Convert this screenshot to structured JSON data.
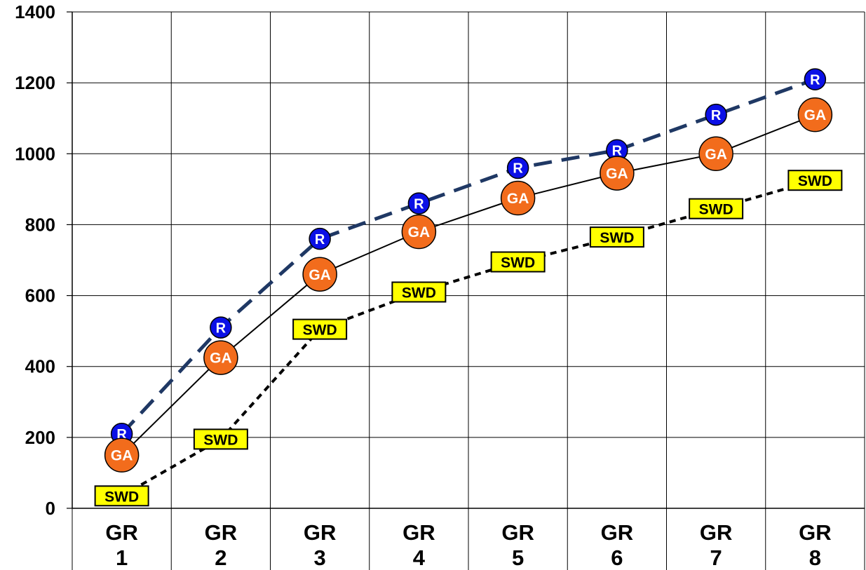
{
  "chart_data": {
    "type": "line",
    "title": "",
    "xlabel": "",
    "ylabel": "",
    "categories": [
      [
        "GR",
        "1"
      ],
      [
        "GR",
        "2"
      ],
      [
        "GR",
        "3"
      ],
      [
        "GR",
        "4"
      ],
      [
        "GR",
        "5"
      ],
      [
        "GR",
        "6"
      ],
      [
        "GR",
        "7"
      ],
      [
        "GR",
        "8"
      ]
    ],
    "yticks": [
      0,
      200,
      400,
      600,
      800,
      1000,
      1200,
      1400
    ],
    "ylim": [
      0,
      1400
    ],
    "grid": true,
    "series": [
      {
        "name": "R",
        "marker_label": "R",
        "marker": "circle",
        "line_style": "long-dash",
        "line_color": "#1f3864",
        "marker_fill": "#0b10e6",
        "values": [
          210,
          510,
          760,
          860,
          960,
          1010,
          1110,
          1210
        ]
      },
      {
        "name": "GA",
        "marker_label": "GA",
        "marker": "circle",
        "line_style": "solid",
        "line_color": "#000000",
        "marker_fill": "#f26c1c",
        "values": [
          150,
          425,
          660,
          780,
          875,
          945,
          1000,
          1110
        ]
      },
      {
        "name": "SWD",
        "marker_label": "SWD",
        "marker": "box",
        "line_style": "short-dash",
        "line_color": "#000000",
        "marker_fill": "#ffff00",
        "values": [
          35,
          195,
          505,
          610,
          695,
          765,
          845,
          925
        ]
      }
    ]
  }
}
